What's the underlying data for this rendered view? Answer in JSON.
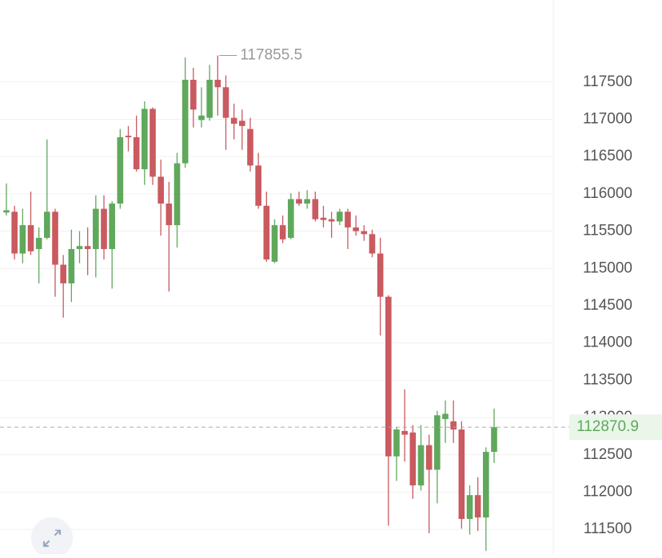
{
  "chart_data": {
    "type": "candlestick",
    "up_color": "#5fa85c",
    "down_color": "#c95a5f",
    "grid": true,
    "ylim": [
      111170,
      118600
    ],
    "yticks": [
      111500,
      112000,
      112500,
      113000,
      113500,
      114000,
      114500,
      115000,
      115500,
      116000,
      116500,
      117000,
      117500
    ],
    "max_label": 117855.5,
    "current_price": 112870.9,
    "open": [
      115750,
      115760,
      115200,
      115580,
      115260,
      115410,
      115760,
      115050,
      114800,
      115260,
      115300,
      115260,
      115800,
      115260,
      115870,
      116780,
      116760,
      116330,
      117140,
      116230,
      115870,
      115580,
      116410,
      117530,
      116990,
      117020,
      117530,
      117430,
      117020,
      116980,
      116870,
      116380,
      115840,
      115090,
      115580,
      115410,
      115930,
      115870,
      115930,
      115680,
      115660,
      115630,
      115760,
      115550,
      115500,
      115460,
      115200,
      114620,
      112480,
      112820,
      112800,
      112090,
      112630,
      112300,
      112980,
      112950,
      112840,
      111640,
      111960,
      111660,
      112540
    ],
    "high": [
      116140,
      115840,
      115800,
      116030,
      115550,
      116730,
      115800,
      115180,
      115520,
      115500,
      115550,
      115980,
      115980,
      115900,
      116870,
      116910,
      117050,
      117240,
      117160,
      116460,
      116160,
      116550,
      117830,
      117690,
      117430,
      117730,
      117855.5,
      117590,
      117210,
      117130,
      117020,
      116550,
      116030,
      115660,
      115710,
      116010,
      116030,
      116050,
      116030,
      115840,
      115760,
      115800,
      115800,
      115710,
      115580,
      115520,
      115410,
      114640,
      112870,
      113380,
      112900,
      112900,
      112770,
      113090,
      113230,
      113230,
      112950,
      112090,
      112200,
      112600,
      113120
    ],
    "low": [
      115710,
      115120,
      115070,
      115180,
      114800,
      115390,
      114620,
      114340,
      114550,
      115070,
      114910,
      114880,
      115120,
      114730,
      115800,
      116570,
      116300,
      116120,
      116120,
      115440,
      114690,
      115280,
      116350,
      116890,
      116890,
      116980,
      117050,
      116590,
      116730,
      116590,
      116300,
      115800,
      115090,
      115070,
      115340,
      115390,
      115840,
      115800,
      115630,
      115550,
      115410,
      115580,
      115260,
      115440,
      115370,
      115150,
      114100,
      111550,
      112150,
      112410,
      111910,
      112020,
      111450,
      111850,
      112660,
      112660,
      111510,
      111430,
      111480,
      111210,
      112390
    ],
    "close": [
      115780,
      115200,
      115580,
      115230,
      115410,
      115760,
      115050,
      114800,
      115260,
      115300,
      115260,
      115800,
      115260,
      115870,
      116760,
      116760,
      116330,
      117140,
      116230,
      115870,
      115580,
      116410,
      117530,
      117130,
      117050,
      117530,
      117430,
      117020,
      116940,
      116910,
      116380,
      115840,
      115120,
      115580,
      115390,
      115930,
      115870,
      115930,
      115660,
      115650,
      115630,
      115760,
      115550,
      115500,
      115460,
      115200,
      114620,
      112480,
      112840,
      112770,
      112090,
      112630,
      112300,
      113030,
      113050,
      112840,
      111640,
      111960,
      111660,
      112540,
      112870.9
    ]
  }
}
